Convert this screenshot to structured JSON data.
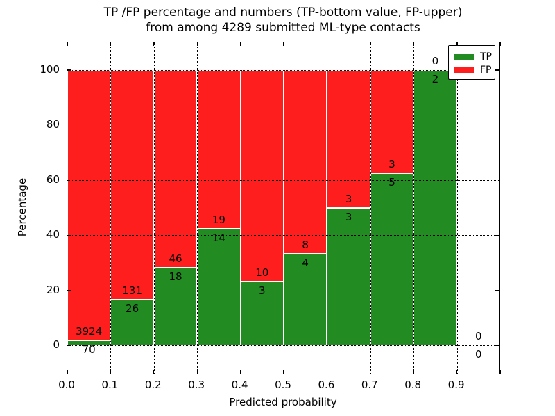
{
  "chart_data": {
    "type": "bar",
    "stacked": true,
    "title_line1": "TP /FP percentage and numbers (TP-bottom value, FP-upper)",
    "title_line2": "from among 4289 submitted ML-type contacts",
    "total_submitted_contacts": 4289,
    "xlabel": "Predicted probability",
    "ylabel": "Percentage",
    "x_tick_labels": [
      "0.0",
      "0.1",
      "0.2",
      "0.3",
      "0.4",
      "0.5",
      "0.6",
      "0.7",
      "0.8",
      "0.9"
    ],
    "y_ticks": [
      0,
      20,
      40,
      60,
      80,
      100
    ],
    "xlim": [
      0.0,
      1.0
    ],
    "ylim": [
      -11,
      110
    ],
    "grid": true,
    "legend": {
      "position": "upper right",
      "entries": [
        {
          "label": "TP",
          "color": "#228B22"
        },
        {
          "label": "FP",
          "color": "#FF1E1E"
        }
      ]
    },
    "bins": [
      {
        "x_start": 0.0,
        "x_end": 0.1,
        "tp": 70,
        "fp": 3924,
        "tp_pct": 1.75
      },
      {
        "x_start": 0.1,
        "x_end": 0.2,
        "tp": 26,
        "fp": 131,
        "tp_pct": 16.56
      },
      {
        "x_start": 0.2,
        "x_end": 0.3,
        "tp": 18,
        "fp": 46,
        "tp_pct": 28.12
      },
      {
        "x_start": 0.3,
        "x_end": 0.4,
        "tp": 14,
        "fp": 19,
        "tp_pct": 42.42
      },
      {
        "x_start": 0.4,
        "x_end": 0.5,
        "tp": 3,
        "fp": 10,
        "tp_pct": 23.08
      },
      {
        "x_start": 0.5,
        "x_end": 0.6,
        "tp": 4,
        "fp": 8,
        "tp_pct": 33.33
      },
      {
        "x_start": 0.6,
        "x_end": 0.7,
        "tp": 3,
        "fp": 3,
        "tp_pct": 50.0
      },
      {
        "x_start": 0.7,
        "x_end": 0.8,
        "tp": 5,
        "fp": 3,
        "tp_pct": 62.5
      },
      {
        "x_start": 0.8,
        "x_end": 0.9,
        "tp": 2,
        "fp": 0,
        "tp_pct": 100.0
      },
      {
        "x_start": 0.9,
        "x_end": 1.0,
        "tp": 0,
        "fp": 0,
        "tp_pct": 0.0
      }
    ],
    "colors": {
      "tp": "#228B22",
      "fp": "#FF1E1E",
      "grid": "#000000",
      "frame": "#000000",
      "bar_edge": "#FFFFFF",
      "background": "#FFFFFF"
    }
  }
}
